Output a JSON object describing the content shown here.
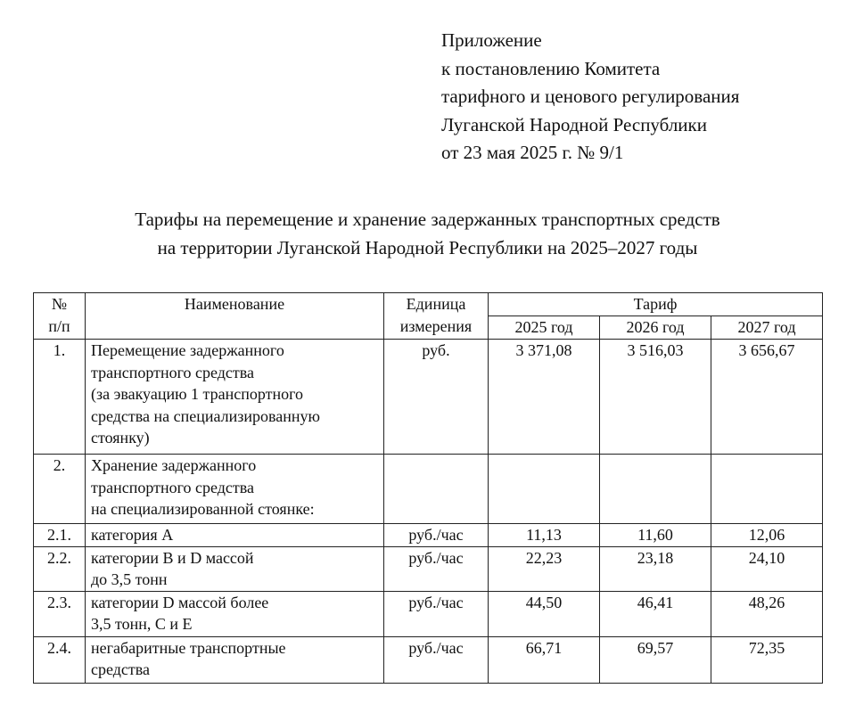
{
  "appendix": "Приложение\nк постановлению Комитета\nтарифного и ценового регулирования\nЛуганской Народной Республики\nот 23 мая 2025 г. № 9/1",
  "title": "Тарифы на перемещение и хранение задержанных транспортных средств\nна территории Луганской Народной Республики на 2025–2027 годы",
  "table": {
    "headers": {
      "num": "№\nп/п",
      "name": "Наименование",
      "unit": "Единица\nизмерения",
      "tariff": "Тариф",
      "years": [
        "2025 год",
        "2026 год",
        "2027 год"
      ]
    },
    "rows": [
      {
        "num": "1.",
        "name": "Перемещение задержанного\nтранспортного средства\n(за эвакуацию 1 транспортного\nсредства на специализированную\nстоянку)",
        "unit": "руб.",
        "values": [
          "3 371,08",
          "3 516,03",
          "3 656,67"
        ]
      },
      {
        "num": "2.",
        "name": "Хранение задержанного\nтранспортного средства\nна специализированной стоянке:",
        "unit": "",
        "values": [
          "",
          "",
          ""
        ]
      },
      {
        "num": "2.1.",
        "name": "категория А",
        "unit": "руб./час",
        "values": [
          "11,13",
          "11,60",
          "12,06"
        ]
      },
      {
        "num": "2.2.",
        "name": "категории B и D массой\nдо 3,5 тонн",
        "unit": "руб./час",
        "values": [
          "22,23",
          "23,18",
          "24,10"
        ]
      },
      {
        "num": "2.3.",
        "name": "категории D массой более\n3,5 тонн, С и Е",
        "unit": "руб./час",
        "values": [
          "44,50",
          "46,41",
          "48,26"
        ]
      },
      {
        "num": "2.4.",
        "name": "негабаритные транспортные\nсредства",
        "unit": "руб./час",
        "values": [
          "66,71",
          "69,57",
          "72,35"
        ]
      }
    ]
  }
}
